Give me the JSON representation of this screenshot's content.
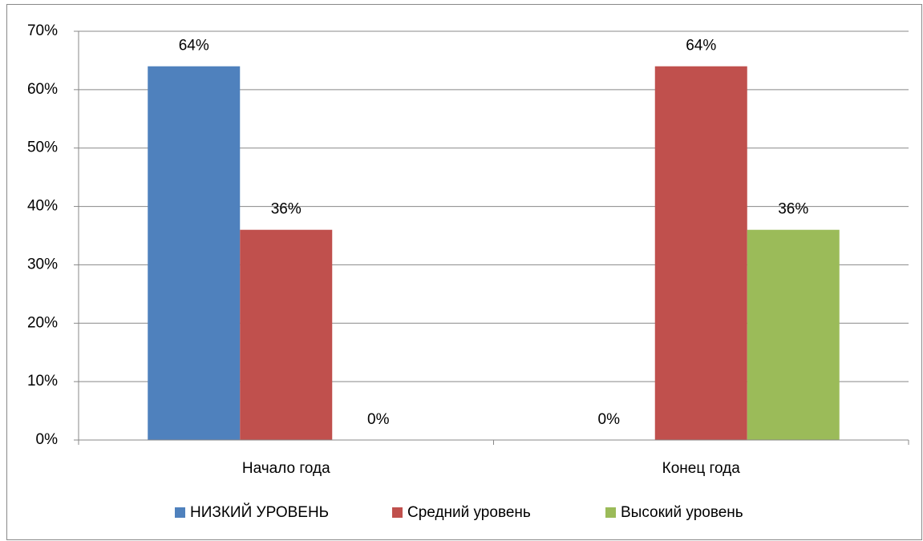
{
  "chart_data": {
    "type": "bar",
    "categories": [
      "Начало года",
      "Конец года"
    ],
    "series": [
      {
        "name": "НИЗКИЙ УРОВЕНЬ",
        "color": "#4f81bd",
        "values": [
          64,
          0
        ],
        "value_labels": [
          "64%",
          "0%"
        ]
      },
      {
        "name": "Средний уровень",
        "color": "#c0504d",
        "values": [
          36,
          64
        ],
        "value_labels": [
          "36%",
          "64%"
        ]
      },
      {
        "name": "Высокий уровень",
        "color": "#9bbb59",
        "values": [
          0,
          36
        ],
        "value_labels": [
          "0%",
          "36%"
        ]
      }
    ],
    "ylim": [
      0,
      70
    ],
    "yticks": [
      {
        "value": 0,
        "label": "0%"
      },
      {
        "value": 10,
        "label": "10%"
      },
      {
        "value": 20,
        "label": "20%"
      },
      {
        "value": 30,
        "label": "30%"
      },
      {
        "value": 40,
        "label": "40%"
      },
      {
        "value": 50,
        "label": "50%"
      },
      {
        "value": 60,
        "label": "60%"
      },
      {
        "value": 70,
        "label": "70%"
      }
    ],
    "grid": true,
    "legend": "bottom"
  }
}
